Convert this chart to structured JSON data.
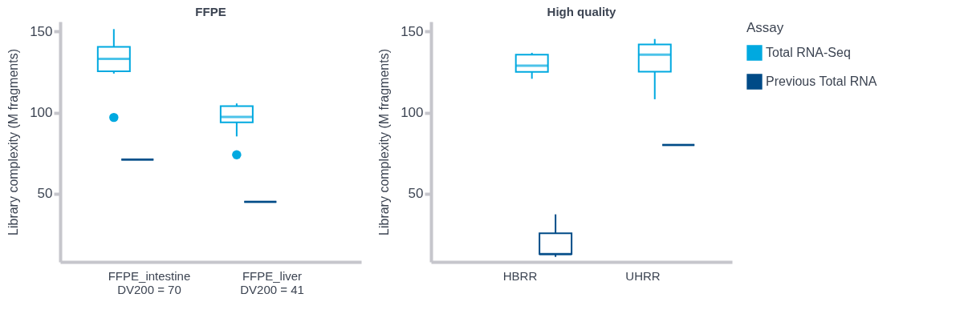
{
  "chart_data": [
    {
      "type": "box",
      "title": "FFPE",
      "ylabel": "Library complexity (M fragments)",
      "categories": [
        "FFPE_intestine\nDV200 = 70",
        "FFPE_liver\nDV200 = 41"
      ],
      "ylim": [
        8,
        156
      ],
      "yticks": [
        50,
        100,
        150
      ],
      "grid": false,
      "series": [
        {
          "color": "#00a9e0",
          "boxes": [
            {
              "low": 124,
              "q1": 125.4,
              "median": 133,
              "q3": 140.5,
              "high": 151.4,
              "outliers": [
                97
              ]
            },
            {
              "low": 85.3,
              "q1": 94,
              "median": 97.3,
              "q3": 104,
              "high": 105.6,
              "outliers": [
                74
              ]
            }
          ]
        },
        {
          "color": "#004b87",
          "boxes": [
            {
              "low": 71,
              "q1": 71,
              "median": 71,
              "q3": 71,
              "high": 71
            },
            {
              "low": 45,
              "q1": 45,
              "median": 45,
              "q3": 45,
              "high": 45
            }
          ]
        }
      ]
    },
    {
      "type": "box",
      "title": "High quality",
      "ylabel": "Library complexity (M fragments)",
      "categories": [
        "HBRR",
        "UHRR"
      ],
      "ylim": [
        8,
        156
      ],
      "yticks": [
        50,
        100,
        150
      ],
      "grid": false,
      "legend": "right",
      "legend_title": "Assay",
      "series": [
        {
          "name": "Total RNA-Seq",
          "color": "#00a9e0",
          "boxes": [
            {
              "low": 120.8,
              "q1": 125,
              "median": 128.9,
              "q3": 135.7,
              "high": 136.8
            },
            {
              "low": 108.2,
              "q1": 125.2,
              "median": 135.6,
              "q3": 142,
              "high": 145.3
            }
          ]
        },
        {
          "name": "Previous Total RNA",
          "color": "#004b87",
          "boxes": [
            {
              "low": 11.1,
              "q1": 12.8,
              "median": 12.8,
              "q3": 25.6,
              "high": 37.3
            },
            {
              "low": 80,
              "q1": 80,
              "median": 80,
              "q3": 80,
              "high": 80
            }
          ]
        }
      ]
    }
  ]
}
